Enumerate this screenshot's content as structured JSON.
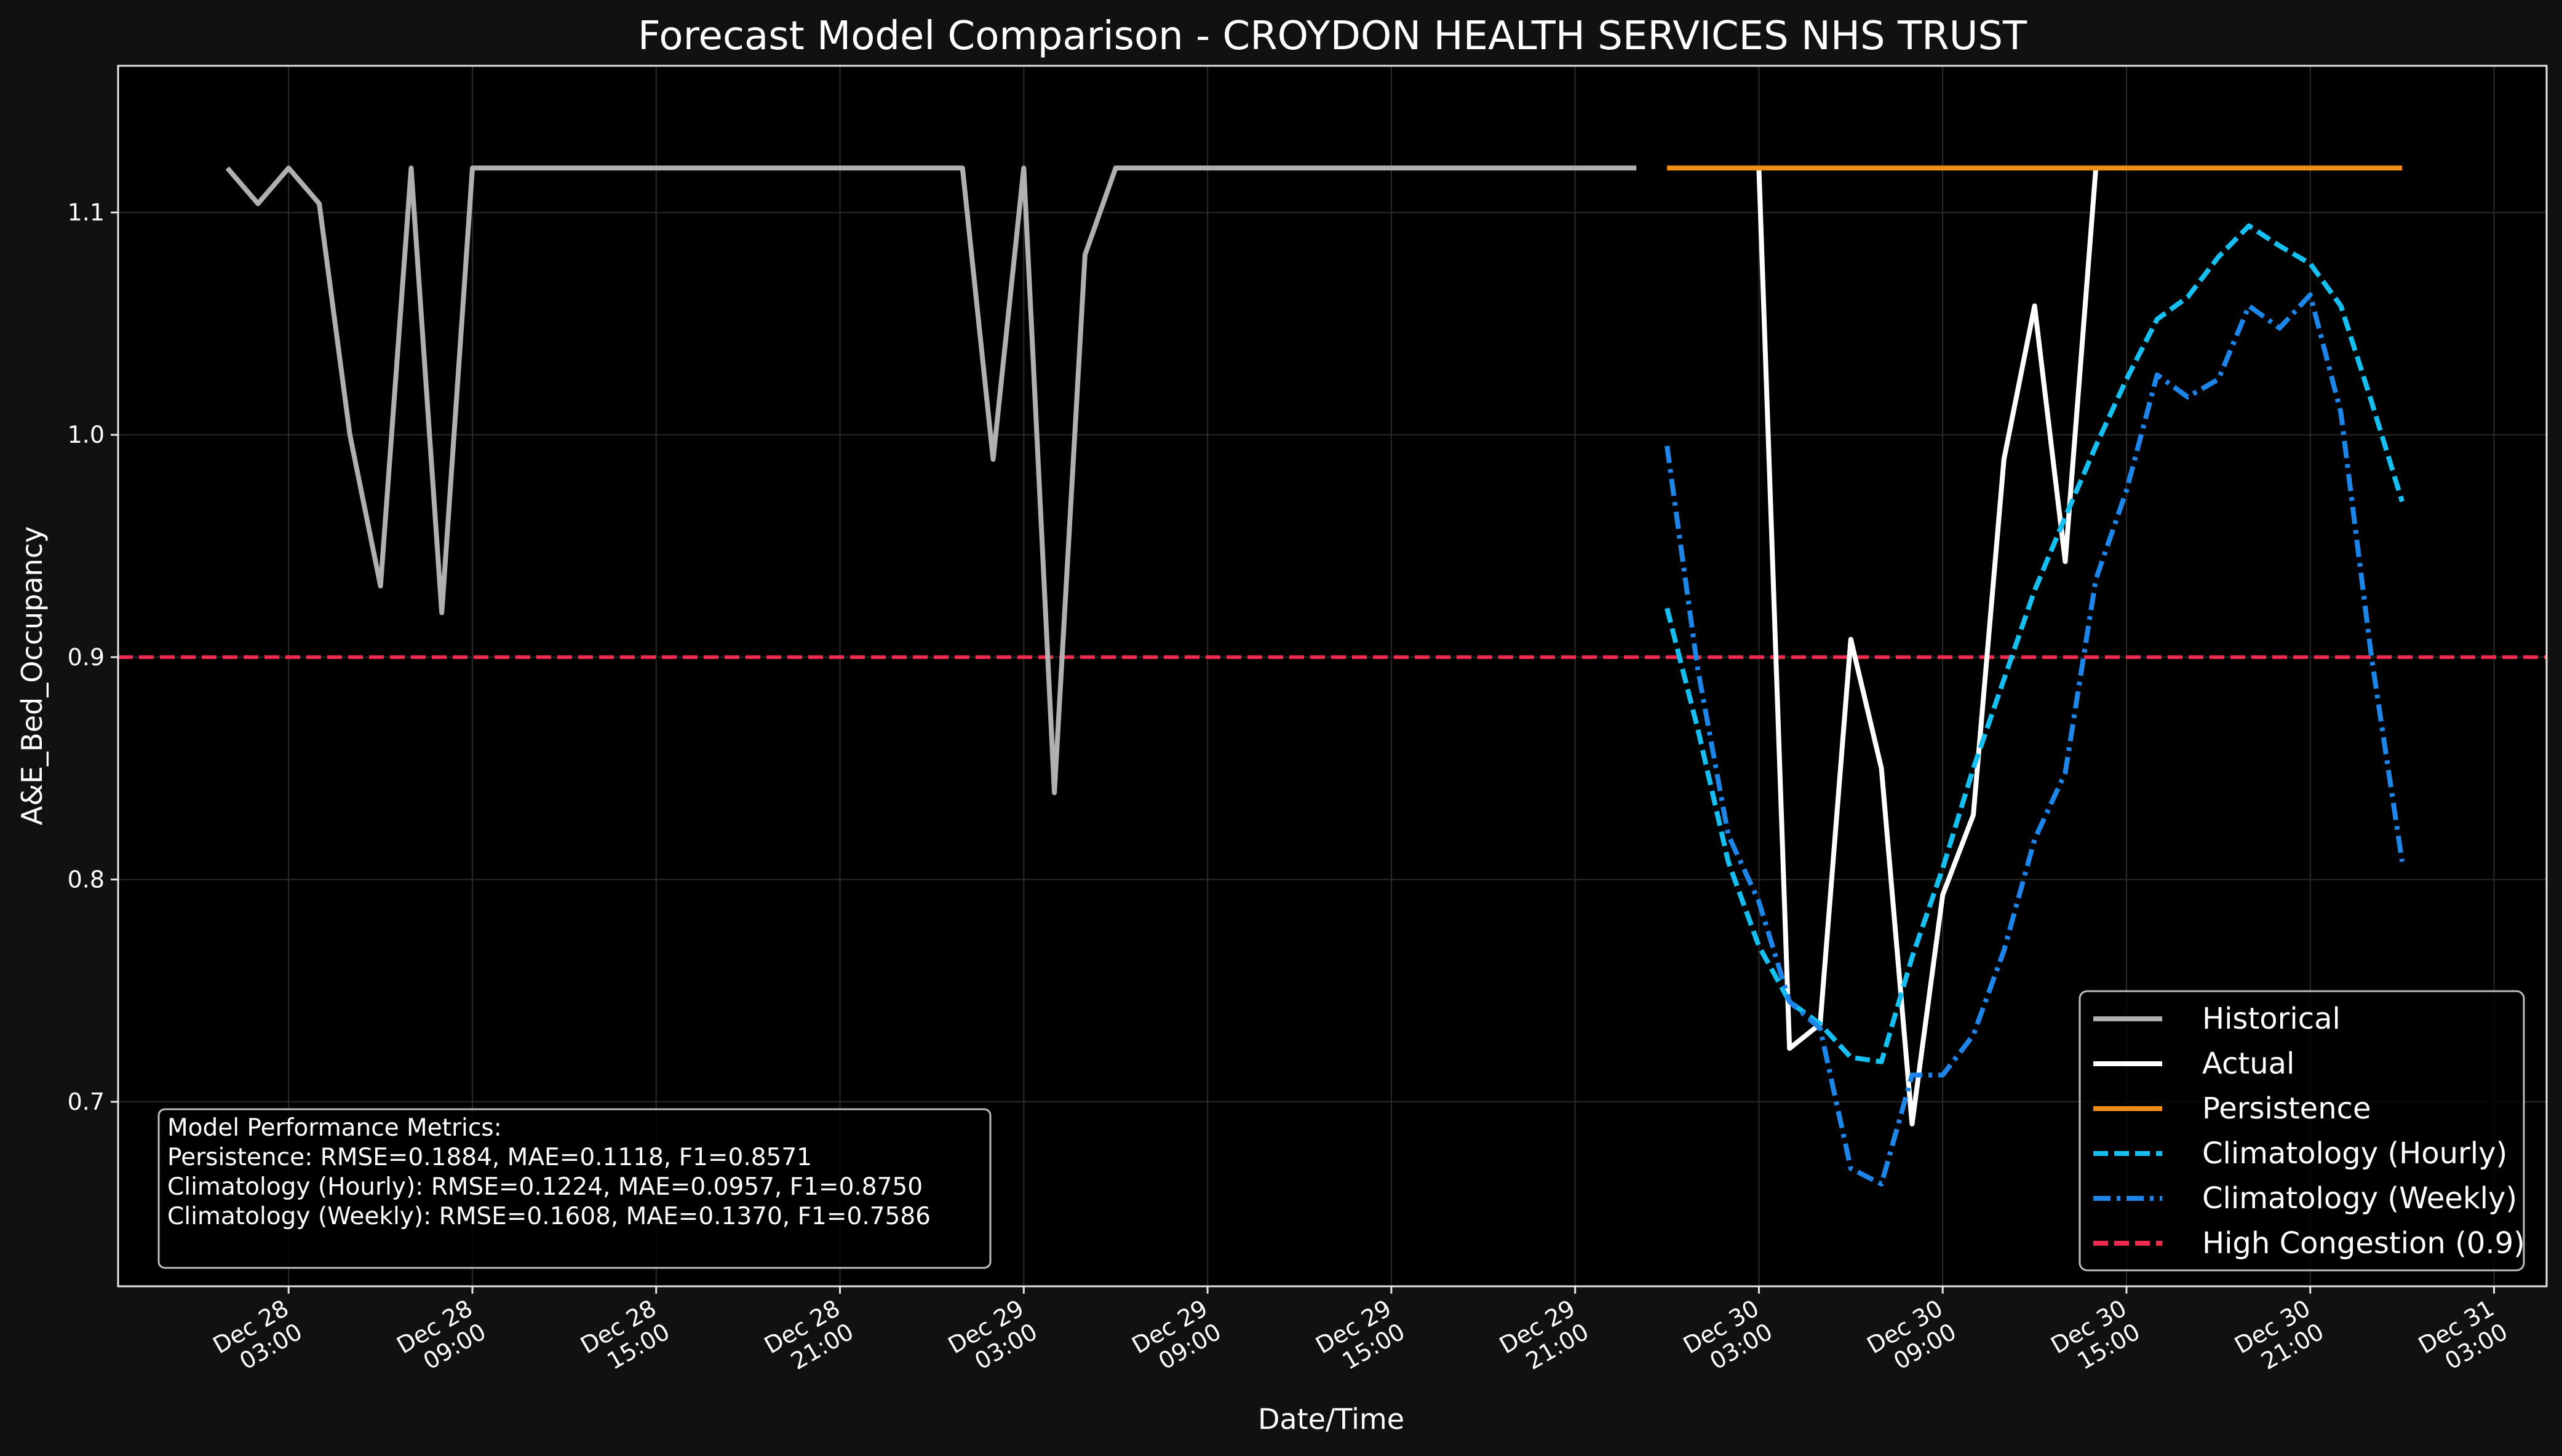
{
  "chart_data": {
    "type": "line",
    "title": "Forecast Model Comparison - CROYDON HEALTH SERVICES NHS TRUST",
    "xlabel": "Date/Time",
    "ylabel": "A&E_Bed_Occupancy",
    "background": "#000000",
    "figure_background": "#111111",
    "grid": true,
    "legend_position": "lower right",
    "xlim": [
      "2024-12-27 21:26",
      "2024-12-31 04:43"
    ],
    "ylim": [
      0.617,
      1.166
    ],
    "y_ticks": [
      {
        "value": 0.7,
        "label": "0.7"
      },
      {
        "value": 0.8,
        "label": "0.8"
      },
      {
        "value": 0.9,
        "label": "0.9"
      },
      {
        "value": 1.0,
        "label": "1.0"
      },
      {
        "value": 1.1,
        "label": "1.1"
      }
    ],
    "x_ticks": [
      {
        "value": "2024-12-28 03:00",
        "line1": "Dec 28",
        "line2": "03:00"
      },
      {
        "value": "2024-12-28 09:00",
        "line1": "Dec 28",
        "line2": "09:00"
      },
      {
        "value": "2024-12-28 15:00",
        "line1": "Dec 28",
        "line2": "15:00"
      },
      {
        "value": "2024-12-28 21:00",
        "line1": "Dec 28",
        "line2": "21:00"
      },
      {
        "value": "2024-12-29 03:00",
        "line1": "Dec 29",
        "line2": "03:00"
      },
      {
        "value": "2024-12-29 09:00",
        "line1": "Dec 29",
        "line2": "09:00"
      },
      {
        "value": "2024-12-29 15:00",
        "line1": "Dec 29",
        "line2": "15:00"
      },
      {
        "value": "2024-12-29 21:00",
        "line1": "Dec 29",
        "line2": "21:00"
      },
      {
        "value": "2024-12-30 03:00",
        "line1": "Dec 30",
        "line2": "03:00"
      },
      {
        "value": "2024-12-30 09:00",
        "line1": "Dec 30",
        "line2": "09:00"
      },
      {
        "value": "2024-12-30 15:00",
        "line1": "Dec 30",
        "line2": "15:00"
      },
      {
        "value": "2024-12-30 21:00",
        "line1": "Dec 30",
        "line2": "21:00"
      },
      {
        "value": "2024-12-31 03:00",
        "line1": "Dec 31",
        "line2": "03:00"
      }
    ],
    "series": [
      {
        "name": "Historical",
        "color": "#b0b0b0",
        "style": "solid",
        "points": [
          [
            "2024-12-28 01:00",
            1.12
          ],
          [
            "2024-12-28 02:00",
            1.104
          ],
          [
            "2024-12-28 03:00",
            1.12
          ],
          [
            "2024-12-28 04:00",
            1.104
          ],
          [
            "2024-12-28 05:00",
            1.0
          ],
          [
            "2024-12-28 06:00",
            0.932
          ],
          [
            "2024-12-28 07:00",
            1.12
          ],
          [
            "2024-12-28 08:00",
            0.92
          ],
          [
            "2024-12-28 09:00",
            1.12
          ],
          [
            "2024-12-28 10:00",
            1.12
          ],
          [
            "2024-12-28 11:00",
            1.12
          ],
          [
            "2024-12-28 12:00",
            1.12
          ],
          [
            "2024-12-28 13:00",
            1.12
          ],
          [
            "2024-12-28 14:00",
            1.12
          ],
          [
            "2024-12-28 15:00",
            1.12
          ],
          [
            "2024-12-28 16:00",
            1.12
          ],
          [
            "2024-12-28 17:00",
            1.12
          ],
          [
            "2024-12-28 18:00",
            1.12
          ],
          [
            "2024-12-28 19:00",
            1.12
          ],
          [
            "2024-12-28 20:00",
            1.12
          ],
          [
            "2024-12-28 21:00",
            1.12
          ],
          [
            "2024-12-28 22:00",
            1.12
          ],
          [
            "2024-12-28 23:00",
            1.12
          ],
          [
            "2024-12-29 00:00",
            1.12
          ],
          [
            "2024-12-29 01:00",
            1.12
          ],
          [
            "2024-12-29 02:00",
            0.989
          ],
          [
            "2024-12-29 03:00",
            1.12
          ],
          [
            "2024-12-29 04:00",
            0.839
          ],
          [
            "2024-12-29 05:00",
            1.081
          ],
          [
            "2024-12-29 06:00",
            1.12
          ],
          [
            "2024-12-29 07:00",
            1.12
          ],
          [
            "2024-12-29 08:00",
            1.12
          ],
          [
            "2024-12-29 09:00",
            1.12
          ],
          [
            "2024-12-29 10:00",
            1.12
          ],
          [
            "2024-12-29 11:00",
            1.12
          ],
          [
            "2024-12-29 12:00",
            1.12
          ],
          [
            "2024-12-29 13:00",
            1.12
          ],
          [
            "2024-12-29 14:00",
            1.12
          ],
          [
            "2024-12-29 15:00",
            1.12
          ],
          [
            "2024-12-29 16:00",
            1.12
          ],
          [
            "2024-12-29 17:00",
            1.12
          ],
          [
            "2024-12-29 18:00",
            1.12
          ],
          [
            "2024-12-29 19:00",
            1.12
          ],
          [
            "2024-12-29 20:00",
            1.12
          ],
          [
            "2024-12-29 21:00",
            1.12
          ],
          [
            "2024-12-29 22:00",
            1.12
          ],
          [
            "2024-12-29 23:00",
            1.12
          ]
        ]
      },
      {
        "name": "Actual",
        "color": "#ffffff",
        "style": "solid",
        "points": [
          [
            "2024-12-30 03:00",
            1.12
          ],
          [
            "2024-12-30 04:00",
            0.724
          ],
          [
            "2024-12-30 05:00",
            0.735
          ],
          [
            "2024-12-30 06:00",
            0.908
          ],
          [
            "2024-12-30 07:00",
            0.85
          ],
          [
            "2024-12-30 08:00",
            0.69
          ],
          [
            "2024-12-30 09:00",
            0.793
          ],
          [
            "2024-12-30 10:00",
            0.829
          ],
          [
            "2024-12-30 11:00",
            0.989
          ],
          [
            "2024-12-30 12:00",
            1.058
          ],
          [
            "2024-12-30 13:00",
            0.943
          ],
          [
            "2024-12-30 14:00",
            1.12
          ]
        ]
      },
      {
        "name": "Persistence",
        "color": "#f28e16",
        "style": "solid",
        "points": [
          [
            "2024-12-30 00:00",
            1.12
          ],
          [
            "2024-12-31 00:00",
            1.12
          ]
        ]
      },
      {
        "name": "Climatology (Hourly)",
        "color": "#17bff0",
        "style": "dashed",
        "points": [
          [
            "2024-12-30 00:00",
            0.922
          ],
          [
            "2024-12-30 01:00",
            0.868
          ],
          [
            "2024-12-30 02:00",
            0.808
          ],
          [
            "2024-12-30 03:00",
            0.77
          ],
          [
            "2024-12-30 04:00",
            0.745
          ],
          [
            "2024-12-30 05:00",
            0.735
          ],
          [
            "2024-12-30 06:00",
            0.72
          ],
          [
            "2024-12-30 07:00",
            0.718
          ],
          [
            "2024-12-30 08:00",
            0.765
          ],
          [
            "2024-12-30 09:00",
            0.805
          ],
          [
            "2024-12-30 10:00",
            0.85
          ],
          [
            "2024-12-30 11:00",
            0.89
          ],
          [
            "2024-12-30 12:00",
            0.93
          ],
          [
            "2024-12-30 13:00",
            0.963
          ],
          [
            "2024-12-30 14:00",
            0.995
          ],
          [
            "2024-12-30 15:00",
            1.025
          ],
          [
            "2024-12-30 16:00",
            1.052
          ],
          [
            "2024-12-30 17:00",
            1.062
          ],
          [
            "2024-12-30 18:00",
            1.08
          ],
          [
            "2024-12-30 19:00",
            1.094
          ],
          [
            "2024-12-30 20:00",
            1.085
          ],
          [
            "2024-12-30 21:00",
            1.077
          ],
          [
            "2024-12-30 22:00",
            1.058
          ],
          [
            "2024-12-30 23:00",
            1.015
          ],
          [
            "2024-12-31 00:00",
            0.97
          ]
        ]
      },
      {
        "name": "Climatology (Weekly)",
        "color": "#1e86e8",
        "style": "dashdot",
        "points": [
          [
            "2024-12-30 00:00",
            0.995
          ],
          [
            "2024-12-30 01:00",
            0.895
          ],
          [
            "2024-12-30 02:00",
            0.82
          ],
          [
            "2024-12-30 03:00",
            0.79
          ],
          [
            "2024-12-30 04:00",
            0.745
          ],
          [
            "2024-12-30 05:00",
            0.733
          ],
          [
            "2024-12-30 06:00",
            0.67
          ],
          [
            "2024-12-30 07:00",
            0.663
          ],
          [
            "2024-12-30 08:00",
            0.712
          ],
          [
            "2024-12-30 09:00",
            0.712
          ],
          [
            "2024-12-30 10:00",
            0.73
          ],
          [
            "2024-12-30 11:00",
            0.768
          ],
          [
            "2024-12-30 12:00",
            0.818
          ],
          [
            "2024-12-30 13:00",
            0.848
          ],
          [
            "2024-12-30 14:00",
            0.935
          ],
          [
            "2024-12-30 15:00",
            0.975
          ],
          [
            "2024-12-30 16:00",
            1.027
          ],
          [
            "2024-12-30 17:00",
            1.017
          ],
          [
            "2024-12-30 18:00",
            1.025
          ],
          [
            "2024-12-30 19:00",
            1.058
          ],
          [
            "2024-12-30 20:00",
            1.048
          ],
          [
            "2024-12-30 21:00",
            1.063
          ],
          [
            "2024-12-30 22:00",
            1.01
          ],
          [
            "2024-12-30 23:00",
            0.9
          ],
          [
            "2024-12-31 00:00",
            0.808
          ]
        ]
      }
    ],
    "threshold": {
      "name": "High Congestion (0.9)",
      "value": 0.9,
      "color": "#ee2a4e",
      "style": "dashed"
    },
    "legend": {
      "items": [
        {
          "label": "Historical",
          "color": "#b0b0b0",
          "style": "solid"
        },
        {
          "label": "Actual",
          "color": "#ffffff",
          "style": "solid"
        },
        {
          "label": "Persistence",
          "color": "#f28e16",
          "style": "solid"
        },
        {
          "label": "Climatology (Hourly)",
          "color": "#17bff0",
          "style": "dashed"
        },
        {
          "label": "Climatology (Weekly)",
          "color": "#1e86e8",
          "style": "dashdot"
        },
        {
          "label": "High Congestion (0.9)",
          "color": "#ee2a4e",
          "style": "dashed"
        }
      ]
    },
    "metrics_box": {
      "lines": [
        "Model Performance Metrics:",
        "Persistence: RMSE=0.1884, MAE=0.1118, F1=0.8571",
        "Climatology (Hourly): RMSE=0.1224, MAE=0.0957, F1=0.8750",
        "Climatology (Weekly): RMSE=0.1608, MAE=0.1370, F1=0.7586"
      ]
    }
  }
}
